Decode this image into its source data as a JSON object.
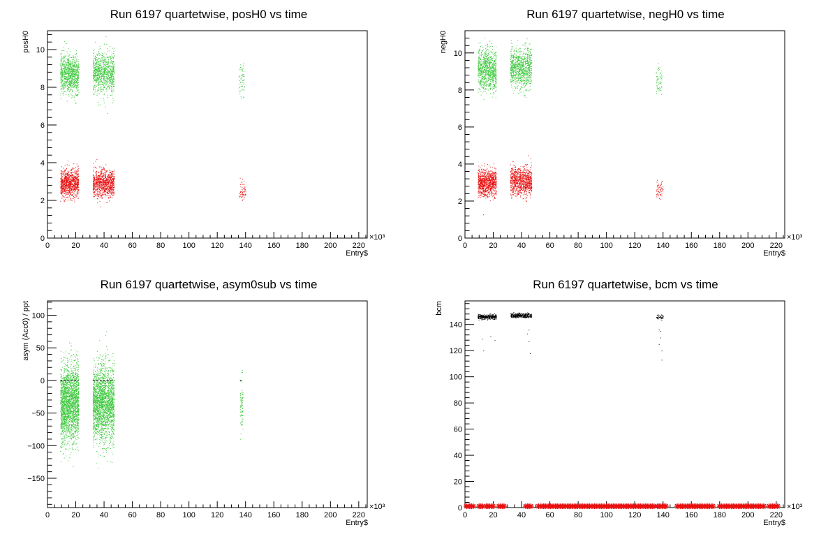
{
  "chart_data": [
    {
      "type": "scatter",
      "title": "Run 6197 quartetwise, posH0 vs time",
      "xlabel": "Entry$",
      "ylabel": "posH0",
      "x_multiplier_label": "×10³",
      "xlim": [
        0,
        226
      ],
      "ylim": [
        0,
        11
      ],
      "x_ticks": [
        0,
        20,
        40,
        60,
        80,
        100,
        120,
        140,
        160,
        180,
        200,
        220
      ],
      "y_ticks": [
        0,
        2,
        4,
        6,
        8,
        10
      ],
      "grid": false,
      "series": [
        {
          "color": "#3cc83c",
          "clusters": [
            {
              "x_range": [
                9,
                22
              ],
              "y_center": 8.7,
              "y_spread": 1.2,
              "n": 900
            },
            {
              "x_range": [
                32,
                47
              ],
              "y_center": 8.8,
              "y_spread": 1.2,
              "n": 900
            },
            {
              "x_range": [
                135,
                139
              ],
              "y_center": 8.4,
              "y_spread": 1.0,
              "n": 60
            }
          ]
        },
        {
          "color": "#e81010",
          "clusters": [
            {
              "x_range": [
                9,
                22
              ],
              "y_center": 2.9,
              "y_spread": 0.8,
              "n": 900
            },
            {
              "x_range": [
                32,
                47
              ],
              "y_center": 2.9,
              "y_spread": 0.8,
              "n": 900
            },
            {
              "x_range": [
                135,
                140
              ],
              "y_center": 2.5,
              "y_spread": 0.6,
              "n": 60
            }
          ]
        }
      ]
    },
    {
      "type": "scatter",
      "title": "Run 6197 quartetwise, negH0 vs time",
      "xlabel": "Entry$",
      "ylabel": "negH0",
      "x_multiplier_label": "×10³",
      "xlim": [
        0,
        226
      ],
      "ylim": [
        0,
        11.2
      ],
      "x_ticks": [
        0,
        20,
        40,
        60,
        80,
        100,
        120,
        140,
        160,
        180,
        200,
        220
      ],
      "y_ticks": [
        0,
        2,
        4,
        6,
        8,
        10
      ],
      "grid": false,
      "series": [
        {
          "color": "#3cc83c",
          "clusters": [
            {
              "x_range": [
                9,
                22
              ],
              "y_center": 9.1,
              "y_spread": 1.2,
              "n": 900
            },
            {
              "x_range": [
                32,
                47
              ],
              "y_center": 9.2,
              "y_spread": 1.2,
              "n": 900
            },
            {
              "x_range": [
                135,
                139
              ],
              "y_center": 8.6,
              "y_spread": 1.0,
              "n": 60
            }
          ]
        },
        {
          "color": "#e81010",
          "clusters": [
            {
              "x_range": [
                9,
                22
              ],
              "y_center": 3.0,
              "y_spread": 0.8,
              "n": 900
            },
            {
              "x_range": [
                32,
                47
              ],
              "y_center": 3.1,
              "y_spread": 0.8,
              "n": 900
            },
            {
              "x_range": [
                135,
                140
              ],
              "y_center": 2.6,
              "y_spread": 0.6,
              "n": 60
            }
          ]
        }
      ]
    },
    {
      "type": "scatter",
      "title": "Run 6197 quartetwise, asym0sub vs time",
      "xlabel": "Entry$",
      "ylabel": "asym (Acc0) / ppt",
      "x_multiplier_label": "×10³",
      "xlim": [
        0,
        226
      ],
      "ylim": [
        -195,
        122
      ],
      "x_ticks": [
        0,
        20,
        40,
        60,
        80,
        100,
        120,
        140,
        160,
        180,
        200,
        220
      ],
      "y_ticks": [
        -150,
        -100,
        -50,
        0,
        50,
        100
      ],
      "grid": false,
      "series": [
        {
          "color": "#3cc83c",
          "clusters": [
            {
              "x_range": [
                9,
                22
              ],
              "y_center": -35,
              "y_spread": 65,
              "n": 2200
            },
            {
              "x_range": [
                32,
                47
              ],
              "y_center": -35,
              "y_spread": 65,
              "n": 2200
            },
            {
              "x_range": [
                136,
                138
              ],
              "y_center": -40,
              "y_spread": 45,
              "n": 80
            }
          ]
        },
        {
          "color": "#000000",
          "lines": [
            {
              "x_range": [
                9,
                22
              ],
              "y": 0
            },
            {
              "x_range": [
                32,
                47
              ],
              "y": 0
            },
            {
              "x_range": [
                136,
                138
              ],
              "y": 0
            }
          ]
        }
      ]
    },
    {
      "type": "scatter",
      "title": "Run 6197 quartetwise, bcm vs time",
      "xlabel": "Entry$",
      "ylabel": "bcm",
      "x_multiplier_label": "×10³",
      "xlim": [
        0,
        226
      ],
      "ylim": [
        0,
        158
      ],
      "x_ticks": [
        0,
        20,
        40,
        60,
        80,
        100,
        120,
        140,
        160,
        180,
        200,
        220
      ],
      "y_ticks": [
        0,
        20,
        40,
        60,
        80,
        100,
        120,
        140
      ],
      "grid": false,
      "series": [
        {
          "color": "#000000",
          "clusters": [
            {
              "x_range": [
                9,
                22
              ],
              "y_center": 146,
              "y_spread": 2,
              "n": 300
            },
            {
              "x_range": [
                32,
                47
              ],
              "y_center": 147,
              "y_spread": 2,
              "n": 300
            },
            {
              "x_range": [
                135,
                140
              ],
              "y_center": 146,
              "y_spread": 2,
              "n": 40
            }
          ],
          "outliers": [
            {
              "x": 12,
              "y": 129
            },
            {
              "x": 13,
              "y": 120
            },
            {
              "x": 18,
              "y": 131
            },
            {
              "x": 21,
              "y": 128
            },
            {
              "x": 44,
              "y": 133
            },
            {
              "x": 45,
              "y": 127
            },
            {
              "x": 46,
              "y": 118
            },
            {
              "x": 45,
              "y": 136
            },
            {
              "x": 137,
              "y": 136
            },
            {
              "x": 138,
              "y": 130
            },
            {
              "x": 139,
              "y": 113
            },
            {
              "x": 137,
              "y": 125
            },
            {
              "x": 139,
              "y": 120
            },
            {
              "x": 138,
              "y": 135
            }
          ]
        },
        {
          "color": "#e81010",
          "marker": "star",
          "y": 0.5,
          "x_ranges": [
            [
              1,
              7
            ],
            [
              10,
              13
            ],
            [
              15,
              20
            ],
            [
              24,
              28
            ],
            [
              43,
              47
            ],
            [
              52,
              134
            ],
            [
              136,
              143
            ],
            [
              150,
              176
            ],
            [
              180,
              212
            ],
            [
              215,
              222
            ]
          ]
        }
      ]
    }
  ]
}
